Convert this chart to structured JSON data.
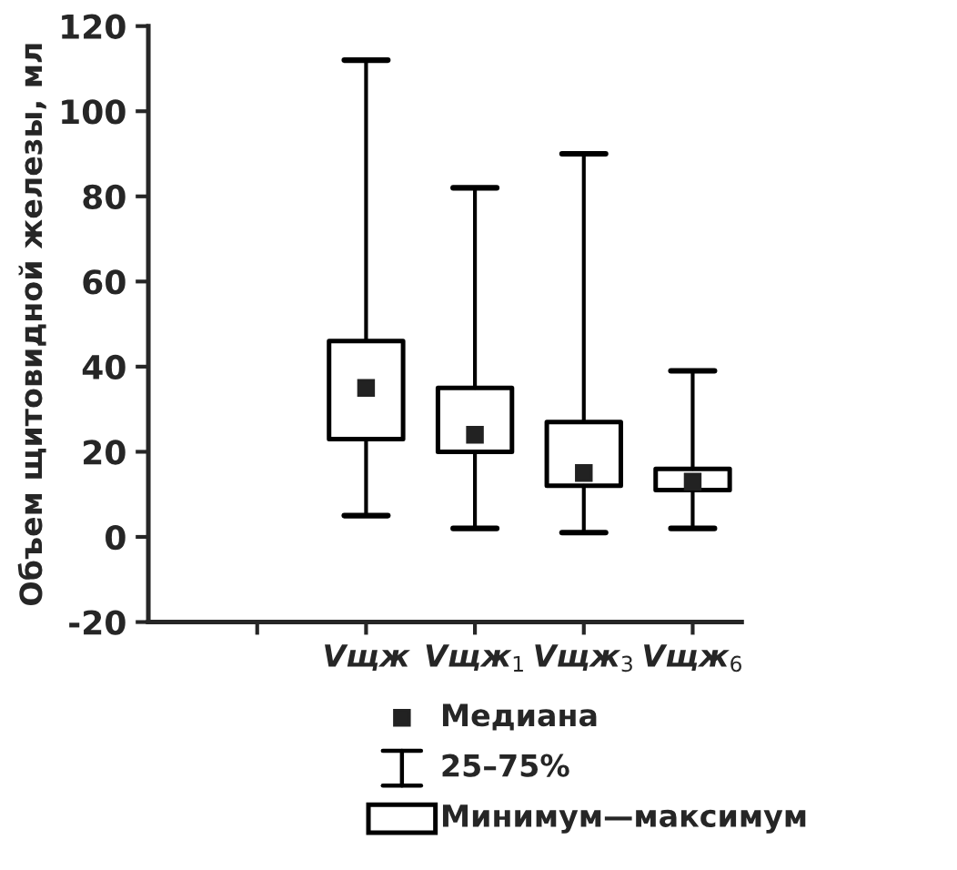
{
  "chart_data": {
    "type": "box",
    "ylabel": "Объем щитовидной железы, мл",
    "categories": [
      null,
      "Vщж",
      "Vщж$_{1}$",
      "Vщж$_{3}$",
      "Vщж$_{6}$"
    ],
    "boxes": [
      null,
      {
        "low": 5,
        "q1": 23,
        "median": 35,
        "q3": 46,
        "high": 112
      },
      {
        "low": 2,
        "q1": 20,
        "median": 24,
        "q3": 35,
        "high": 82
      },
      {
        "low": 1,
        "q1": 12,
        "median": 15,
        "q3": 27,
        "high": 90
      },
      {
        "low": 2,
        "q1": 11,
        "median": 13,
        "q3": 16,
        "high": 39
      }
    ],
    "ylim": [
      -20,
      120
    ],
    "yticks": [
      -20,
      0,
      20,
      40,
      60,
      80,
      100,
      120
    ],
    "grid": false,
    "annotations": [
      "Медиана",
      "25–75%",
      "Минимум—максимум"
    ]
  }
}
